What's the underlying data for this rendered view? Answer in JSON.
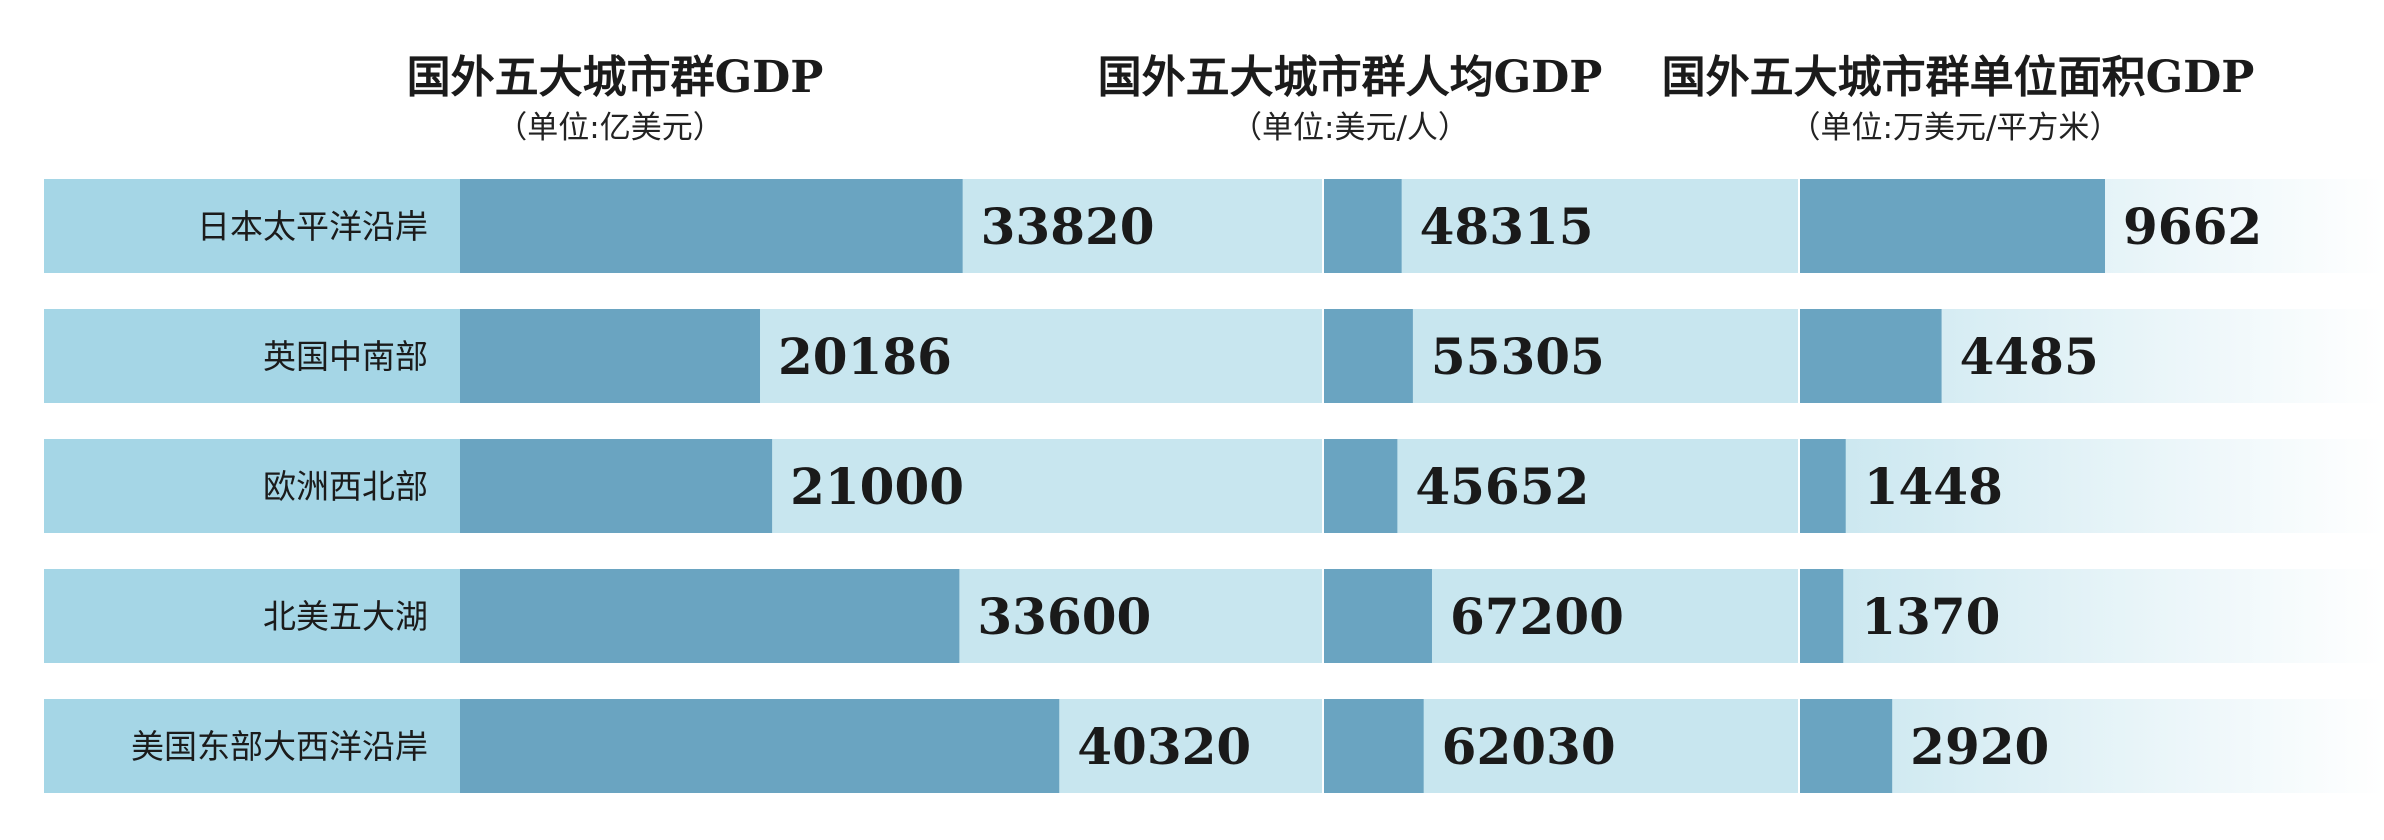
{
  "chart_data": {
    "type": "bar",
    "orientation": "horizontal",
    "categories": [
      "日本太平洋沿岸",
      "英国中南部",
      "欧洲西北部",
      "北美五大湖",
      "美国东部大西洋沿岸"
    ],
    "panels": [
      {
        "title": "国外五大城市群GDP",
        "subtitle": "（单位:亿美元）",
        "values": [
          33820,
          20186,
          21000,
          33600,
          40320
        ],
        "xlim": [
          0,
          58000
        ]
      },
      {
        "title": "国外五大城市群人均GDP",
        "subtitle": "（单位:美元/人）",
        "values": [
          48315,
          55305,
          45652,
          67200,
          62030
        ],
        "xlim": [
          0,
          295000
        ]
      },
      {
        "title": "国外五大城市群单位面积GDP",
        "subtitle": "（单位:万美元/平方米）",
        "values": [
          9662,
          4485,
          1448,
          1370,
          2920
        ],
        "xlim": [
          0,
          18500
        ]
      }
    ],
    "grid": false,
    "legend": "none"
  },
  "colors": {
    "bar": "#6aa4c1",
    "label_band": "#a5d6e6",
    "track": "#c8e6ef",
    "text": "#1b1b1b"
  }
}
